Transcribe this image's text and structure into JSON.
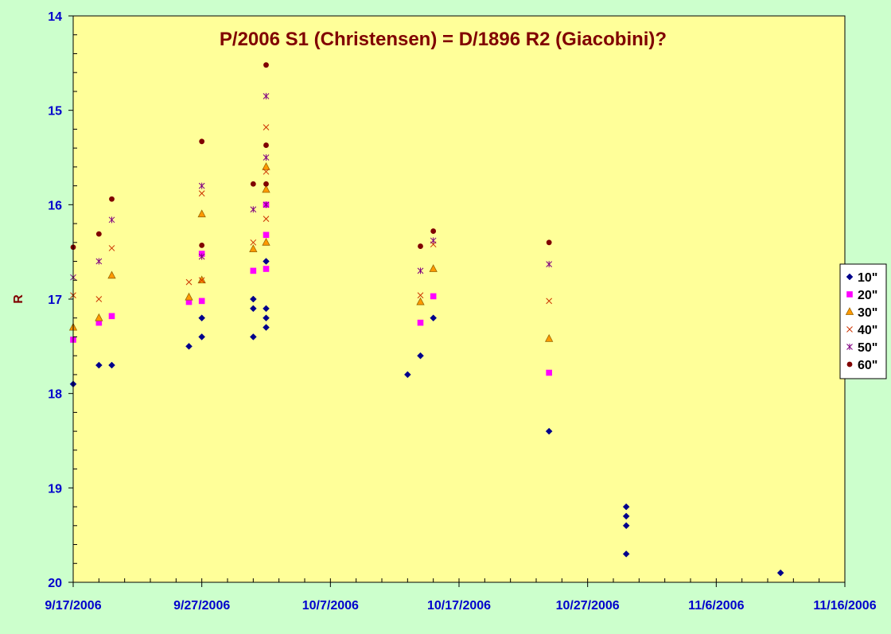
{
  "chart_data": {
    "type": "scatter",
    "title": "P/2006 S1 (Christensen) = D/1896 R2 (Giacobini)?",
    "ylabel": "R",
    "xlabel": "",
    "y_axis_inverted": true,
    "ylim": [
      14,
      20
    ],
    "y_ticks": [
      "14",
      "15",
      "16",
      "17",
      "18",
      "19",
      "20"
    ],
    "xlim": [
      "9/17/2006",
      "11/16/2006"
    ],
    "x_ticks": [
      "9/17/2006",
      "9/27/2006",
      "10/7/2006",
      "10/17/2006",
      "10/27/2006",
      "11/6/2006",
      "11/16/2006"
    ],
    "grid": false,
    "legend_position": "right",
    "colors": {
      "background": "#ccffcc",
      "plot_area": "#ffff99",
      "title": "#800000",
      "axis_labels": "#0000cc"
    },
    "series": [
      {
        "name": "10\"",
        "marker": "diamond",
        "color": "#00008b",
        "points": [
          {
            "x": "9/17/2006",
            "y": 17.9
          },
          {
            "x": "9/19/2006",
            "y": 17.7
          },
          {
            "x": "9/20/2006",
            "y": 17.7
          },
          {
            "x": "9/26/2006",
            "y": 17.5
          },
          {
            "x": "9/27/2006",
            "y": 17.2
          },
          {
            "x": "9/27/2006",
            "y": 17.4
          },
          {
            "x": "10/1/2006",
            "y": 17.0
          },
          {
            "x": "10/1/2006",
            "y": 17.1
          },
          {
            "x": "10/1/2006",
            "y": 17.4
          },
          {
            "x": "10/2/2006",
            "y": 16.6
          },
          {
            "x": "10/2/2006",
            "y": 17.1
          },
          {
            "x": "10/2/2006",
            "y": 17.2
          },
          {
            "x": "10/2/2006",
            "y": 17.3
          },
          {
            "x": "10/13/2006",
            "y": 17.8
          },
          {
            "x": "10/14/2006",
            "y": 17.6
          },
          {
            "x": "10/15/2006",
            "y": 17.2
          },
          {
            "x": "10/24/2006",
            "y": 18.4
          },
          {
            "x": "10/30/2006",
            "y": 19.2
          },
          {
            "x": "10/30/2006",
            "y": 19.3
          },
          {
            "x": "10/30/2006",
            "y": 19.4
          },
          {
            "x": "10/30/2006",
            "y": 19.7
          },
          {
            "x": "11/11/2006",
            "y": 19.9
          }
        ]
      },
      {
        "name": "20\"",
        "marker": "square",
        "color": "#ff00ff",
        "points": [
          {
            "x": "9/17/2006",
            "y": 17.43
          },
          {
            "x": "9/19/2006",
            "y": 17.25
          },
          {
            "x": "9/20/2006",
            "y": 17.18
          },
          {
            "x": "9/26/2006",
            "y": 17.03
          },
          {
            "x": "9/27/2006",
            "y": 16.52
          },
          {
            "x": "9/27/2006",
            "y": 17.02
          },
          {
            "x": "10/1/2006",
            "y": 16.7
          },
          {
            "x": "10/2/2006",
            "y": 16.0
          },
          {
            "x": "10/2/2006",
            "y": 16.32
          },
          {
            "x": "10/2/2006",
            "y": 16.68
          },
          {
            "x": "10/14/2006",
            "y": 17.25
          },
          {
            "x": "10/15/2006",
            "y": 16.97
          },
          {
            "x": "10/24/2006",
            "y": 17.78
          }
        ]
      },
      {
        "name": "30\"",
        "marker": "triangle",
        "color": "#ff9900",
        "points": [
          {
            "x": "9/17/2006",
            "y": 17.3
          },
          {
            "x": "9/19/2006",
            "y": 17.2
          },
          {
            "x": "9/20/2006",
            "y": 16.75
          },
          {
            "x": "9/26/2006",
            "y": 16.98
          },
          {
            "x": "9/27/2006",
            "y": 16.1
          },
          {
            "x": "9/27/2006",
            "y": 16.8
          },
          {
            "x": "10/1/2006",
            "y": 16.47
          },
          {
            "x": "10/2/2006",
            "y": 15.6
          },
          {
            "x": "10/2/2006",
            "y": 15.84
          },
          {
            "x": "10/2/2006",
            "y": 16.4
          },
          {
            "x": "10/14/2006",
            "y": 17.03
          },
          {
            "x": "10/15/2006",
            "y": 16.68
          },
          {
            "x": "10/24/2006",
            "y": 17.42
          }
        ]
      },
      {
        "name": "40\"",
        "marker": "x",
        "color": "#cc3300",
        "points": [
          {
            "x": "9/17/2006",
            "y": 16.96
          },
          {
            "x": "9/19/2006",
            "y": 17.0
          },
          {
            "x": "9/20/2006",
            "y": 16.46
          },
          {
            "x": "9/26/2006",
            "y": 16.82
          },
          {
            "x": "9/27/2006",
            "y": 15.88
          },
          {
            "x": "9/27/2006",
            "y": 16.8
          },
          {
            "x": "10/1/2006",
            "y": 16.4
          },
          {
            "x": "10/2/2006",
            "y": 15.18
          },
          {
            "x": "10/2/2006",
            "y": 15.65
          },
          {
            "x": "10/2/2006",
            "y": 16.15
          },
          {
            "x": "10/14/2006",
            "y": 16.96
          },
          {
            "x": "10/15/2006",
            "y": 16.42
          },
          {
            "x": "10/24/2006",
            "y": 17.02
          }
        ]
      },
      {
        "name": "50\"",
        "marker": "star",
        "color": "#800080",
        "points": [
          {
            "x": "9/17/2006",
            "y": 16.77
          },
          {
            "x": "9/19/2006",
            "y": 16.6
          },
          {
            "x": "9/20/2006",
            "y": 16.16
          },
          {
            "x": "9/27/2006",
            "y": 15.8
          },
          {
            "x": "9/27/2006",
            "y": 16.55
          },
          {
            "x": "10/1/2006",
            "y": 16.05
          },
          {
            "x": "10/2/2006",
            "y": 14.85
          },
          {
            "x": "10/2/2006",
            "y": 15.5
          },
          {
            "x": "10/2/2006",
            "y": 16.0
          },
          {
            "x": "10/14/2006",
            "y": 16.7
          },
          {
            "x": "10/15/2006",
            "y": 16.38
          },
          {
            "x": "10/24/2006",
            "y": 16.63
          }
        ]
      },
      {
        "name": "60\"",
        "marker": "circle",
        "color": "#800000",
        "points": [
          {
            "x": "9/17/2006",
            "y": 16.45
          },
          {
            "x": "9/19/2006",
            "y": 16.31
          },
          {
            "x": "9/20/2006",
            "y": 15.94
          },
          {
            "x": "9/27/2006",
            "y": 15.33
          },
          {
            "x": "9/27/2006",
            "y": 16.43
          },
          {
            "x": "10/1/2006",
            "y": 15.78
          },
          {
            "x": "10/2/2006",
            "y": 14.52
          },
          {
            "x": "10/2/2006",
            "y": 15.37
          },
          {
            "x": "10/2/2006",
            "y": 15.78
          },
          {
            "x": "10/14/2006",
            "y": 16.44
          },
          {
            "x": "10/15/2006",
            "y": 16.28
          },
          {
            "x": "10/24/2006",
            "y": 16.4
          }
        ]
      }
    ]
  }
}
